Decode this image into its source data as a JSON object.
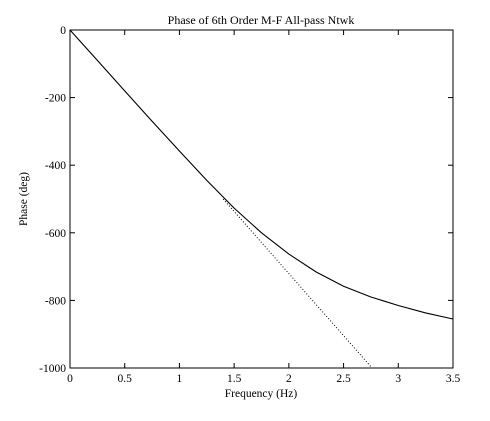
{
  "chart_data": {
    "type": "line",
    "title": "Phase of 6th Order M-F All-pass Ntwk",
    "xlabel": "Frequency (Hz)",
    "ylabel": "Phase (deg)",
    "xlim": [
      0,
      3.5
    ],
    "ylim": [
      -1000,
      0
    ],
    "xticks": [
      0,
      0.5,
      1,
      1.5,
      2,
      2.5,
      3,
      3.5
    ],
    "xtick_labels": [
      "0",
      "0.5",
      "1",
      "1.5",
      "2",
      "2.5",
      "3",
      "3.5"
    ],
    "yticks": [
      0,
      -200,
      -400,
      -600,
      -800,
      -1000
    ],
    "ytick_labels": [
      "0",
      "-200",
      "-400",
      "-600",
      "-800",
      "-1000"
    ],
    "grid": false,
    "series": [
      {
        "style": "solid",
        "color": "#000000",
        "x": [
          0,
          0.25,
          0.5,
          0.75,
          1.0,
          1.25,
          1.5,
          1.75,
          2.0,
          2.25,
          2.5,
          2.75,
          3.0,
          3.25,
          3.5
        ],
        "y": [
          0,
          -90,
          -180,
          -270,
          -358,
          -445,
          -527,
          -600,
          -663,
          -716,
          -758,
          -790,
          -815,
          -837,
          -855
        ]
      },
      {
        "style": "dotted",
        "color": "#000000",
        "x": [
          1.4,
          2.76
        ],
        "y": [
          -500,
          -1000
        ]
      }
    ]
  }
}
